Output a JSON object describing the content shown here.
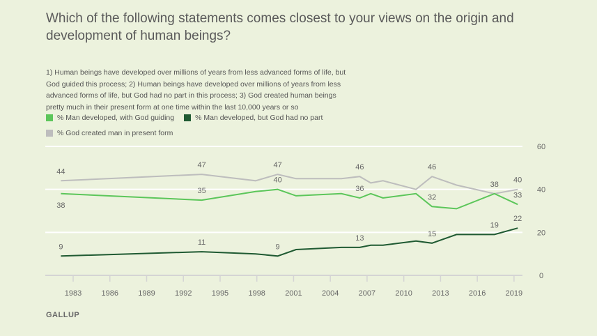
{
  "chart_data": {
    "type": "line",
    "title": "Which of the following statements comes closest to your views on the origin and development of human beings?",
    "subtitle": "1) Human beings have developed over millions of years from less advanced forms of life, but God guided this process; 2) Human beings have developed over millions of years from less advanced forms of life, but God had no part in this process; 3) God created human beings pretty much in their present form at one time within the last 10,000 years or so",
    "x": [
      1982.0,
      1993.5,
      1997.9,
      1999.7,
      2001.2,
      2004.9,
      2006.4,
      2007.3,
      2008.3,
      2011.0,
      2012.3,
      2014.3,
      2017.4,
      2019.3
    ],
    "series": [
      {
        "name": "% Man developed, with God guiding",
        "color": "#5cc65a",
        "values": [
          38,
          35,
          39,
          40,
          37,
          38,
          36,
          38,
          36,
          38,
          32,
          31,
          38,
          33
        ],
        "labels": [
          {
            "i": 0,
            "pos": "below",
            "text": "38"
          },
          {
            "i": 1,
            "pos": "above",
            "text": "35"
          },
          {
            "i": 3,
            "pos": "above",
            "text": "40"
          },
          {
            "i": 6,
            "pos": "above",
            "text": "36"
          },
          {
            "i": 10,
            "pos": "above",
            "text": "32"
          },
          {
            "i": 13,
            "pos": "above",
            "text": "33"
          }
        ]
      },
      {
        "name": "% Man developed, but God had no part",
        "color": "#1f5a32",
        "values": [
          9,
          11,
          10,
          9,
          12,
          13,
          13,
          14,
          14,
          16,
          15,
          19,
          19,
          22
        ],
        "labels": [
          {
            "i": 0,
            "pos": "above",
            "text": "9"
          },
          {
            "i": 1,
            "pos": "above",
            "text": "11"
          },
          {
            "i": 3,
            "pos": "above",
            "text": "9"
          },
          {
            "i": 6,
            "pos": "above",
            "text": "13"
          },
          {
            "i": 10,
            "pos": "above",
            "text": "15"
          },
          {
            "i": 12,
            "pos": "above",
            "text": "19"
          },
          {
            "i": 13,
            "pos": "above",
            "text": "22"
          }
        ]
      },
      {
        "name": "% God created man in present form",
        "color": "#bdbdbd",
        "values": [
          44,
          47,
          44,
          47,
          45,
          45,
          46,
          43,
          44,
          40,
          46,
          42,
          38,
          40
        ],
        "labels": [
          {
            "i": 0,
            "pos": "above",
            "text": "44"
          },
          {
            "i": 1,
            "pos": "above",
            "text": "47"
          },
          {
            "i": 3,
            "pos": "above",
            "text": "47"
          },
          {
            "i": 6,
            "pos": "above",
            "text": "46"
          },
          {
            "i": 10,
            "pos": "above",
            "text": "46"
          },
          {
            "i": 12,
            "pos": "above",
            "text": "38"
          },
          {
            "i": 13,
            "pos": "above",
            "text": "40"
          }
        ]
      }
    ],
    "xticks": [
      1983,
      1986,
      1989,
      1992,
      1995,
      1998,
      2001,
      2004,
      2007,
      2010,
      2013,
      2016,
      2019
    ],
    "yticks": [
      0,
      20,
      40,
      60
    ],
    "ylim": [
      0,
      60
    ],
    "grid": true,
    "yaxis_side": "right",
    "legend_placement": "top-left",
    "xlabel": "",
    "ylabel": ""
  },
  "source": "GALLUP",
  "background": "#ecf2dd"
}
